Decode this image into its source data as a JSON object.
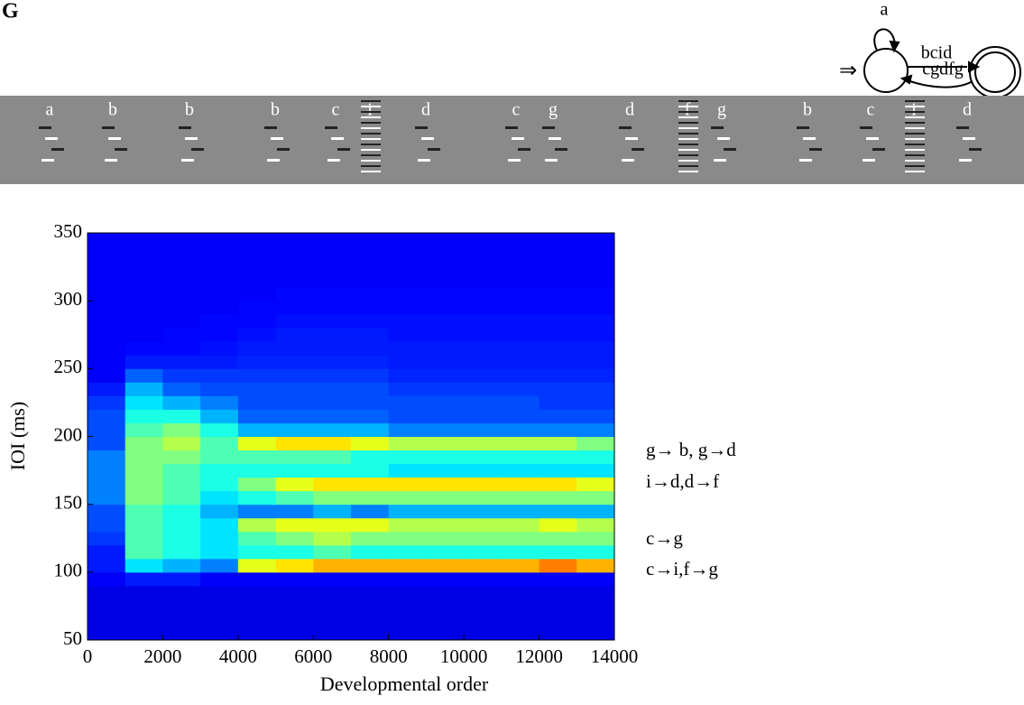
{
  "panel_label": "G",
  "automaton": {
    "start_symbol": "⇒",
    "self_loop": "a",
    "forward": "bcid",
    "back": "cgdfg"
  },
  "spectrogram": {
    "syllables": [
      "a",
      "b",
      "b",
      "b",
      "c",
      "i",
      "d",
      "c",
      "g",
      "d",
      "f",
      "g",
      "b",
      "c",
      "i",
      "d"
    ]
  },
  "chart_data": {
    "type": "heatmap",
    "xlabel": "Developmental order",
    "ylabel": "IOI (ms)",
    "xlim": [
      0,
      14000
    ],
    "ylim": [
      50,
      350
    ],
    "xticks": [
      0,
      2000,
      4000,
      6000,
      8000,
      10000,
      12000,
      14000
    ],
    "yticks": [
      50,
      100,
      150,
      200,
      250,
      300,
      350
    ],
    "colormap": "jet",
    "xbins": [
      0,
      1000,
      2000,
      3000,
      4000,
      5000,
      6000,
      7000,
      8000,
      9000,
      10000,
      11000,
      12000,
      13000,
      14000
    ],
    "ybins": [
      50,
      60,
      70,
      80,
      90,
      100,
      110,
      120,
      130,
      140,
      150,
      160,
      170,
      180,
      190,
      200,
      210,
      220,
      230,
      240,
      250,
      260,
      270,
      280,
      290,
      300,
      310,
      320,
      330,
      340,
      350
    ],
    "z": [
      [
        0.1,
        0.1,
        0.1,
        0.1,
        0.1,
        0.1,
        0.1,
        0.1,
        0.1,
        0.1,
        0.1,
        0.1,
        0.1,
        0.1
      ],
      [
        0.1,
        0.1,
        0.1,
        0.1,
        0.1,
        0.1,
        0.1,
        0.1,
        0.1,
        0.1,
        0.1,
        0.1,
        0.1,
        0.1
      ],
      [
        0.1,
        0.1,
        0.1,
        0.1,
        0.1,
        0.1,
        0.1,
        0.1,
        0.1,
        0.1,
        0.1,
        0.1,
        0.1,
        0.1
      ],
      [
        0.1,
        0.1,
        0.1,
        0.1,
        0.1,
        0.1,
        0.1,
        0.1,
        0.1,
        0.1,
        0.1,
        0.1,
        0.1,
        0.1
      ],
      [
        0.12,
        0.15,
        0.15,
        0.12,
        0.12,
        0.12,
        0.12,
        0.12,
        0.12,
        0.12,
        0.12,
        0.12,
        0.12,
        0.12
      ],
      [
        0.15,
        0.35,
        0.3,
        0.25,
        0.6,
        0.65,
        0.7,
        0.7,
        0.7,
        0.7,
        0.7,
        0.7,
        0.75,
        0.7
      ],
      [
        0.15,
        0.45,
        0.4,
        0.35,
        0.4,
        0.4,
        0.45,
        0.4,
        0.4,
        0.4,
        0.4,
        0.4,
        0.4,
        0.4
      ],
      [
        0.18,
        0.45,
        0.4,
        0.35,
        0.45,
        0.5,
        0.55,
        0.5,
        0.5,
        0.5,
        0.5,
        0.5,
        0.5,
        0.5
      ],
      [
        0.2,
        0.45,
        0.4,
        0.35,
        0.55,
        0.6,
        0.6,
        0.6,
        0.55,
        0.55,
        0.55,
        0.55,
        0.6,
        0.55
      ],
      [
        0.2,
        0.45,
        0.4,
        0.3,
        0.25,
        0.25,
        0.3,
        0.25,
        0.3,
        0.3,
        0.3,
        0.3,
        0.3,
        0.3
      ],
      [
        0.25,
        0.5,
        0.45,
        0.35,
        0.4,
        0.45,
        0.5,
        0.5,
        0.5,
        0.5,
        0.5,
        0.5,
        0.5,
        0.5
      ],
      [
        0.25,
        0.5,
        0.45,
        0.4,
        0.5,
        0.6,
        0.65,
        0.65,
        0.65,
        0.65,
        0.65,
        0.65,
        0.65,
        0.6
      ],
      [
        0.25,
        0.5,
        0.45,
        0.4,
        0.4,
        0.4,
        0.4,
        0.4,
        0.35,
        0.35,
        0.35,
        0.35,
        0.35,
        0.35
      ],
      [
        0.25,
        0.5,
        0.5,
        0.45,
        0.45,
        0.45,
        0.45,
        0.4,
        0.4,
        0.4,
        0.4,
        0.4,
        0.4,
        0.4
      ],
      [
        0.2,
        0.5,
        0.55,
        0.45,
        0.6,
        0.65,
        0.65,
        0.6,
        0.55,
        0.55,
        0.55,
        0.55,
        0.55,
        0.5
      ],
      [
        0.2,
        0.45,
        0.5,
        0.4,
        0.3,
        0.3,
        0.3,
        0.3,
        0.25,
        0.25,
        0.25,
        0.25,
        0.25,
        0.25
      ],
      [
        0.2,
        0.4,
        0.4,
        0.3,
        0.22,
        0.22,
        0.22,
        0.22,
        0.2,
        0.2,
        0.2,
        0.2,
        0.2,
        0.2
      ],
      [
        0.18,
        0.35,
        0.3,
        0.25,
        0.2,
        0.2,
        0.2,
        0.2,
        0.2,
        0.2,
        0.2,
        0.2,
        0.18,
        0.18
      ],
      [
        0.15,
        0.3,
        0.22,
        0.2,
        0.2,
        0.2,
        0.2,
        0.2,
        0.18,
        0.18,
        0.18,
        0.18,
        0.18,
        0.18
      ],
      [
        0.12,
        0.22,
        0.18,
        0.18,
        0.18,
        0.18,
        0.18,
        0.18,
        0.16,
        0.16,
        0.16,
        0.16,
        0.16,
        0.16
      ],
      [
        0.12,
        0.15,
        0.15,
        0.15,
        0.16,
        0.16,
        0.16,
        0.16,
        0.15,
        0.15,
        0.15,
        0.15,
        0.15,
        0.15
      ],
      [
        0.12,
        0.13,
        0.13,
        0.14,
        0.15,
        0.15,
        0.15,
        0.15,
        0.15,
        0.15,
        0.15,
        0.15,
        0.15,
        0.15
      ],
      [
        0.12,
        0.12,
        0.13,
        0.13,
        0.14,
        0.15,
        0.15,
        0.15,
        0.14,
        0.14,
        0.14,
        0.14,
        0.14,
        0.14
      ],
      [
        0.12,
        0.12,
        0.12,
        0.13,
        0.13,
        0.14,
        0.14,
        0.14,
        0.14,
        0.14,
        0.14,
        0.14,
        0.14,
        0.14
      ],
      [
        0.12,
        0.12,
        0.12,
        0.12,
        0.13,
        0.13,
        0.13,
        0.13,
        0.13,
        0.13,
        0.13,
        0.13,
        0.13,
        0.13
      ],
      [
        0.12,
        0.12,
        0.12,
        0.12,
        0.12,
        0.13,
        0.13,
        0.13,
        0.13,
        0.13,
        0.13,
        0.13,
        0.13,
        0.13
      ],
      [
        0.12,
        0.12,
        0.12,
        0.12,
        0.12,
        0.12,
        0.12,
        0.12,
        0.12,
        0.12,
        0.12,
        0.12,
        0.12,
        0.12
      ],
      [
        0.12,
        0.12,
        0.12,
        0.12,
        0.12,
        0.12,
        0.12,
        0.12,
        0.12,
        0.12,
        0.12,
        0.12,
        0.12,
        0.12
      ],
      [
        0.12,
        0.12,
        0.12,
        0.12,
        0.12,
        0.12,
        0.12,
        0.12,
        0.12,
        0.12,
        0.12,
        0.12,
        0.12,
        0.12
      ],
      [
        0.12,
        0.12,
        0.12,
        0.12,
        0.12,
        0.12,
        0.12,
        0.12,
        0.12,
        0.12,
        0.12,
        0.12,
        0.12,
        0.12
      ]
    ],
    "annotations": [
      "g→ b, g→d",
      "i→d,d→f",
      "c→g",
      "c→i,f→g"
    ]
  }
}
